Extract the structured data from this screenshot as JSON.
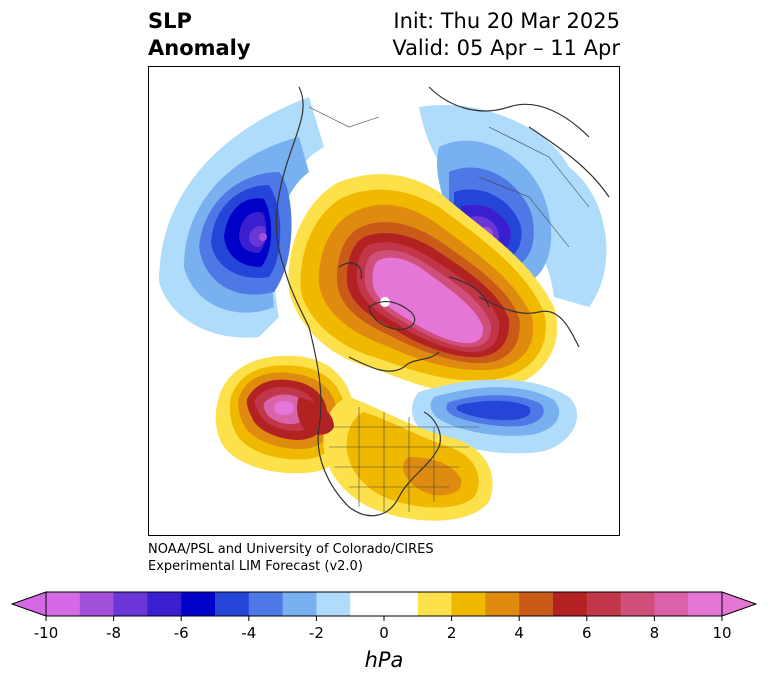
{
  "title": {
    "left_line1": "SLP",
    "left_line2": "Anomaly",
    "right_line1": "Init: Thu 20 Mar 2025",
    "right_line2": "Valid: 05 Apr – 11 Apr"
  },
  "credit": {
    "line1": "NOAA/PSL and University of Colorado/CIRES",
    "line2": "Experimental LIM Forecast (v2.0)"
  },
  "colorbar": {
    "units": "hPa",
    "tick_labels": [
      "-10",
      "-8",
      "-6",
      "-4",
      "-2",
      "0",
      "2",
      "4",
      "6",
      "8",
      "10"
    ],
    "colors": [
      "#d66ae6",
      "#a24fd9",
      "#6a36d8",
      "#3a1fd0",
      "#0000c9",
      "#2545d8",
      "#4e78e6",
      "#78b0f0",
      "#aedcfa",
      "#ffffff",
      "#ffffff",
      "#fde14a",
      "#f1b800",
      "#df8b10",
      "#c95a18",
      "#b22222",
      "#c2364a",
      "#cf4f7a",
      "#da62a8",
      "#e676d6"
    ],
    "min": -10,
    "max": 10,
    "step": 1,
    "extend": "both"
  },
  "map": {
    "projection": "north-polar-stereographic",
    "features": [
      {
        "label": "arctic positive anomaly",
        "sign": "positive",
        "peak_hpa": 10
      },
      {
        "label": "north pacific negative anomaly",
        "sign": "negative",
        "peak_hpa": -9
      },
      {
        "label": "siberia negative anomaly",
        "sign": "negative",
        "peak_hpa": -9
      },
      {
        "label": "aleutian positive anomaly",
        "sign": "positive",
        "peak_hpa": 9
      },
      {
        "label": "north atlantic negative anomaly",
        "sign": "negative",
        "peak_hpa": -6
      },
      {
        "label": "north america positive anomaly",
        "sign": "positive",
        "peak_hpa": 5
      }
    ]
  }
}
